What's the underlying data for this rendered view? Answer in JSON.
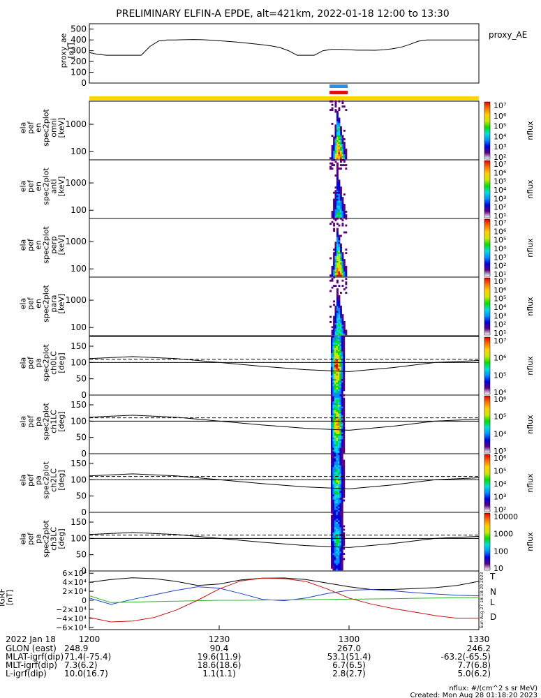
{
  "title": "PRELIMINARY ELFIN-A EPDE, alt=421km, 2022-01-18 12:00 to 13:30",
  "colors": {
    "line": "#000000",
    "bar_yellow": "#ffd700",
    "bar_blue": "#2a8ee8",
    "bar_red": "#e01010",
    "T": "#000000",
    "N": "#1a3fd0",
    "L": "#2bb52b",
    "D": "#d01010"
  },
  "colorbar_stops": [
    "#ffffff",
    "#5a0080",
    "#0000e0",
    "#0090ff",
    "#00e0e0",
    "#00e000",
    "#d0e800",
    "#ffd000",
    "#ff7000",
    "#e00000"
  ],
  "icons": [
    "colorbar-icon"
  ],
  "chart_data": [
    {
      "type": "line",
      "id": "proxy_ae",
      "ylabel": [
        "proxy_ae",
        "[nT]"
      ],
      "legend": "proxy_AE",
      "ylim": [
        0,
        550
      ],
      "yticks": [
        "0",
        "100",
        "200",
        "300",
        "400",
        "500"
      ],
      "x": [
        0,
        2,
        4,
        6,
        8,
        10,
        12,
        14,
        16,
        18,
        20,
        22,
        24,
        26,
        28,
        30,
        32,
        34,
        36,
        38,
        40,
        42,
        44,
        46,
        48,
        50,
        52,
        54,
        56,
        58,
        60,
        62,
        64,
        66,
        68,
        70,
        72,
        74,
        76,
        78,
        80,
        82,
        84,
        86,
        88,
        90
      ],
      "values": [
        283,
        265,
        258,
        258,
        258,
        258,
        258,
        340,
        390,
        400,
        400,
        402,
        404,
        402,
        398,
        392,
        386,
        380,
        372,
        364,
        355,
        345,
        330,
        300,
        258,
        258,
        258,
        300,
        312,
        312,
        308,
        305,
        305,
        304,
        308,
        318,
        332,
        358,
        388,
        400,
        400,
        400,
        400,
        400,
        400,
        400
      ]
    },
    {
      "type": "heatmap",
      "id": "omni",
      "ylabel": [
        "ela",
        "pef",
        "en",
        "spec2plot",
        "omni",
        "[keV]"
      ],
      "yscale": "log",
      "ylim": [
        50,
        7000
      ],
      "yticks": [
        "100",
        "1000"
      ],
      "zlabel": "nflux",
      "zticks": [
        "10²",
        "10³",
        "10⁴",
        "10⁵",
        "10⁶",
        "10⁷"
      ],
      "tspan": [
        55.5,
        59.5
      ],
      "peak": 1.0
    },
    {
      "type": "heatmap",
      "id": "anti",
      "ylabel": [
        "ela",
        "pef",
        "en",
        "spec2plot",
        "anti",
        "[keV]"
      ],
      "yscale": "log",
      "ylim": [
        50,
        7000
      ],
      "yticks": [
        "100",
        "1000"
      ],
      "zlabel": "nflux",
      "zticks": [
        "10¹",
        "10²",
        "10³",
        "10⁴",
        "10⁵",
        "10⁶",
        "10⁷"
      ],
      "tspan": [
        55.5,
        59.5
      ],
      "peak": 0.55
    },
    {
      "type": "heatmap",
      "id": "perp",
      "ylabel": [
        "ela",
        "pef",
        "en",
        "spec2plot",
        "perp",
        "[keV]"
      ],
      "yscale": "log",
      "ylim": [
        50,
        7000
      ],
      "yticks": [
        "100",
        "1000"
      ],
      "zlabel": "nflux",
      "zticks": [
        "10¹",
        "10²",
        "10³",
        "10⁴",
        "10⁵",
        "10⁶",
        "10⁷"
      ],
      "tspan": [
        55.5,
        59.5
      ],
      "peak": 1.0
    },
    {
      "type": "heatmap",
      "id": "para",
      "ylabel": [
        "ela",
        "pef",
        "en",
        "spec2plot",
        "para",
        "[keV]"
      ],
      "yscale": "log",
      "ylim": [
        50,
        7000
      ],
      "yticks": [
        "100",
        "1000"
      ],
      "zlabel": "nflux",
      "zticks": [
        "10¹",
        "10²",
        "10³",
        "10⁴",
        "10⁵",
        "10⁶",
        "10⁷"
      ],
      "tspan": [
        55.5,
        59.5
      ],
      "peak": 0.6
    },
    {
      "type": "heatmap",
      "id": "ch0LC",
      "ylabel": [
        "ela",
        "pef",
        "pa",
        "spec2plot",
        "ch0LC",
        "[deg]"
      ],
      "ylim": [
        0,
        180
      ],
      "yticks": [
        "0",
        "50",
        "100",
        "150"
      ],
      "zlabel": "nflux",
      "zticks": [
        "10⁴",
        "10⁵",
        "10⁶",
        "10⁷"
      ],
      "tspan": [
        55.8,
        59.0
      ],
      "peak": 1.0
    },
    {
      "type": "heatmap",
      "id": "ch1LC",
      "ylabel": [
        "ela",
        "pef",
        "pa",
        "spec2plot",
        "ch1LC",
        "[deg]"
      ],
      "ylim": [
        0,
        180
      ],
      "yticks": [
        "0",
        "50",
        "100",
        "150"
      ],
      "zlabel": "nflux",
      "zticks": [
        "10³",
        "10⁴",
        "10⁵",
        "10⁶"
      ],
      "tspan": [
        55.8,
        59.0
      ],
      "peak": 0.9
    },
    {
      "type": "heatmap",
      "id": "ch2LC",
      "ylabel": [
        "ela",
        "pef",
        "pa",
        "spec2plot",
        "ch2LC",
        "[deg]"
      ],
      "ylim": [
        0,
        180
      ],
      "yticks": [
        "0",
        "50",
        "100",
        "150"
      ],
      "zlabel": "nflux",
      "zticks": [
        "10²",
        "10³",
        "10⁴",
        "10⁵",
        "10⁶"
      ],
      "tspan": [
        55.8,
        59.0
      ],
      "peak": 0.65
    },
    {
      "type": "heatmap",
      "id": "ch3LC",
      "ylabel": [
        "ela",
        "pef",
        "pa",
        "spec2plot",
        "ch3LC",
        "[deg]"
      ],
      "ylim": [
        0,
        180
      ],
      "yticks": [
        "0",
        "50",
        "100",
        "150"
      ],
      "zlabel": "nflux",
      "zticks": [
        "10",
        "100",
        "1000",
        "10000"
      ],
      "tspan": [
        55.8,
        59.0
      ],
      "peak": 0.55
    },
    {
      "type": "line",
      "id": "igrf",
      "ylabel": [
        "IGRF",
        "[nT]"
      ],
      "ylim": [
        -65000,
        65000
      ],
      "yticks": [
        "−6×10⁴",
        "−4×10⁴",
        "−2×10⁴",
        "0",
        "2×10⁴",
        "4×10⁴",
        "6×10⁴"
      ],
      "x": [
        0,
        5,
        10,
        15,
        20,
        25,
        30,
        35,
        40,
        45,
        50,
        55,
        60,
        65,
        70,
        75,
        80,
        85,
        90
      ],
      "series": [
        {
          "name": "T",
          "values": [
            40000,
            46000,
            50000,
            48000,
            42000,
            33000,
            36000,
            45000,
            49000,
            49500,
            46000,
            38000,
            30000,
            24000,
            24000,
            26000,
            28000,
            33000,
            42000
          ]
        },
        {
          "name": "N",
          "values": [
            5000,
            -9000,
            2000,
            12000,
            22000,
            30000,
            27000,
            15000,
            2000,
            -1000,
            5000,
            15000,
            22000,
            24000,
            21000,
            17000,
            14000,
            11000,
            10000
          ]
        },
        {
          "name": "L",
          "values": [
            10000,
            -5000,
            -4000,
            -3000,
            -2000,
            -1000,
            0,
            0,
            500,
            1000,
            1500,
            2000,
            2500,
            3000,
            3500,
            4500,
            5000,
            5500,
            6000
          ]
        },
        {
          "name": "D",
          "values": [
            -38000,
            -48000,
            -46000,
            -38000,
            -22000,
            0,
            25000,
            43000,
            49000,
            48000,
            42000,
            25000,
            5000,
            -8000,
            -18000,
            -26000,
            -34000,
            -40000,
            -40000
          ]
        }
      ],
      "side_text": "Sun Aug 27 18:18:20 2023"
    }
  ],
  "ephemeris": {
    "date": "2022 Jan 18",
    "rows": [
      {
        "label": "GLON (east)",
        "values": [
          "248.9",
          "90.4",
          "267.0",
          "246.2"
        ]
      },
      {
        "label": "MLAT-igrf(dip)",
        "values": [
          "71.4(-75.4)",
          "19.6(11.9)",
          "53.1(51.4)",
          "-63.2(-65.5)"
        ]
      },
      {
        "label": "MLT-igrf(dip)",
        "values": [
          "7.3(6.2)",
          "18.6(18.6)",
          "6.7(6.5)",
          "7.7(6.8)"
        ]
      },
      {
        "label": "L-igrf(dip)",
        "values": [
          "10.0(16.7)",
          "1.1(1.1)",
          "2.8(2.7)",
          "5.0(6.2)"
        ]
      }
    ],
    "time_ticks": [
      "1200",
      "1230",
      "1300",
      "1330"
    ]
  },
  "footer": {
    "units": "nflux: #/(cm^2 s sr MeV)",
    "created": "Created: Mon Aug 28 01:18:20 2023"
  }
}
